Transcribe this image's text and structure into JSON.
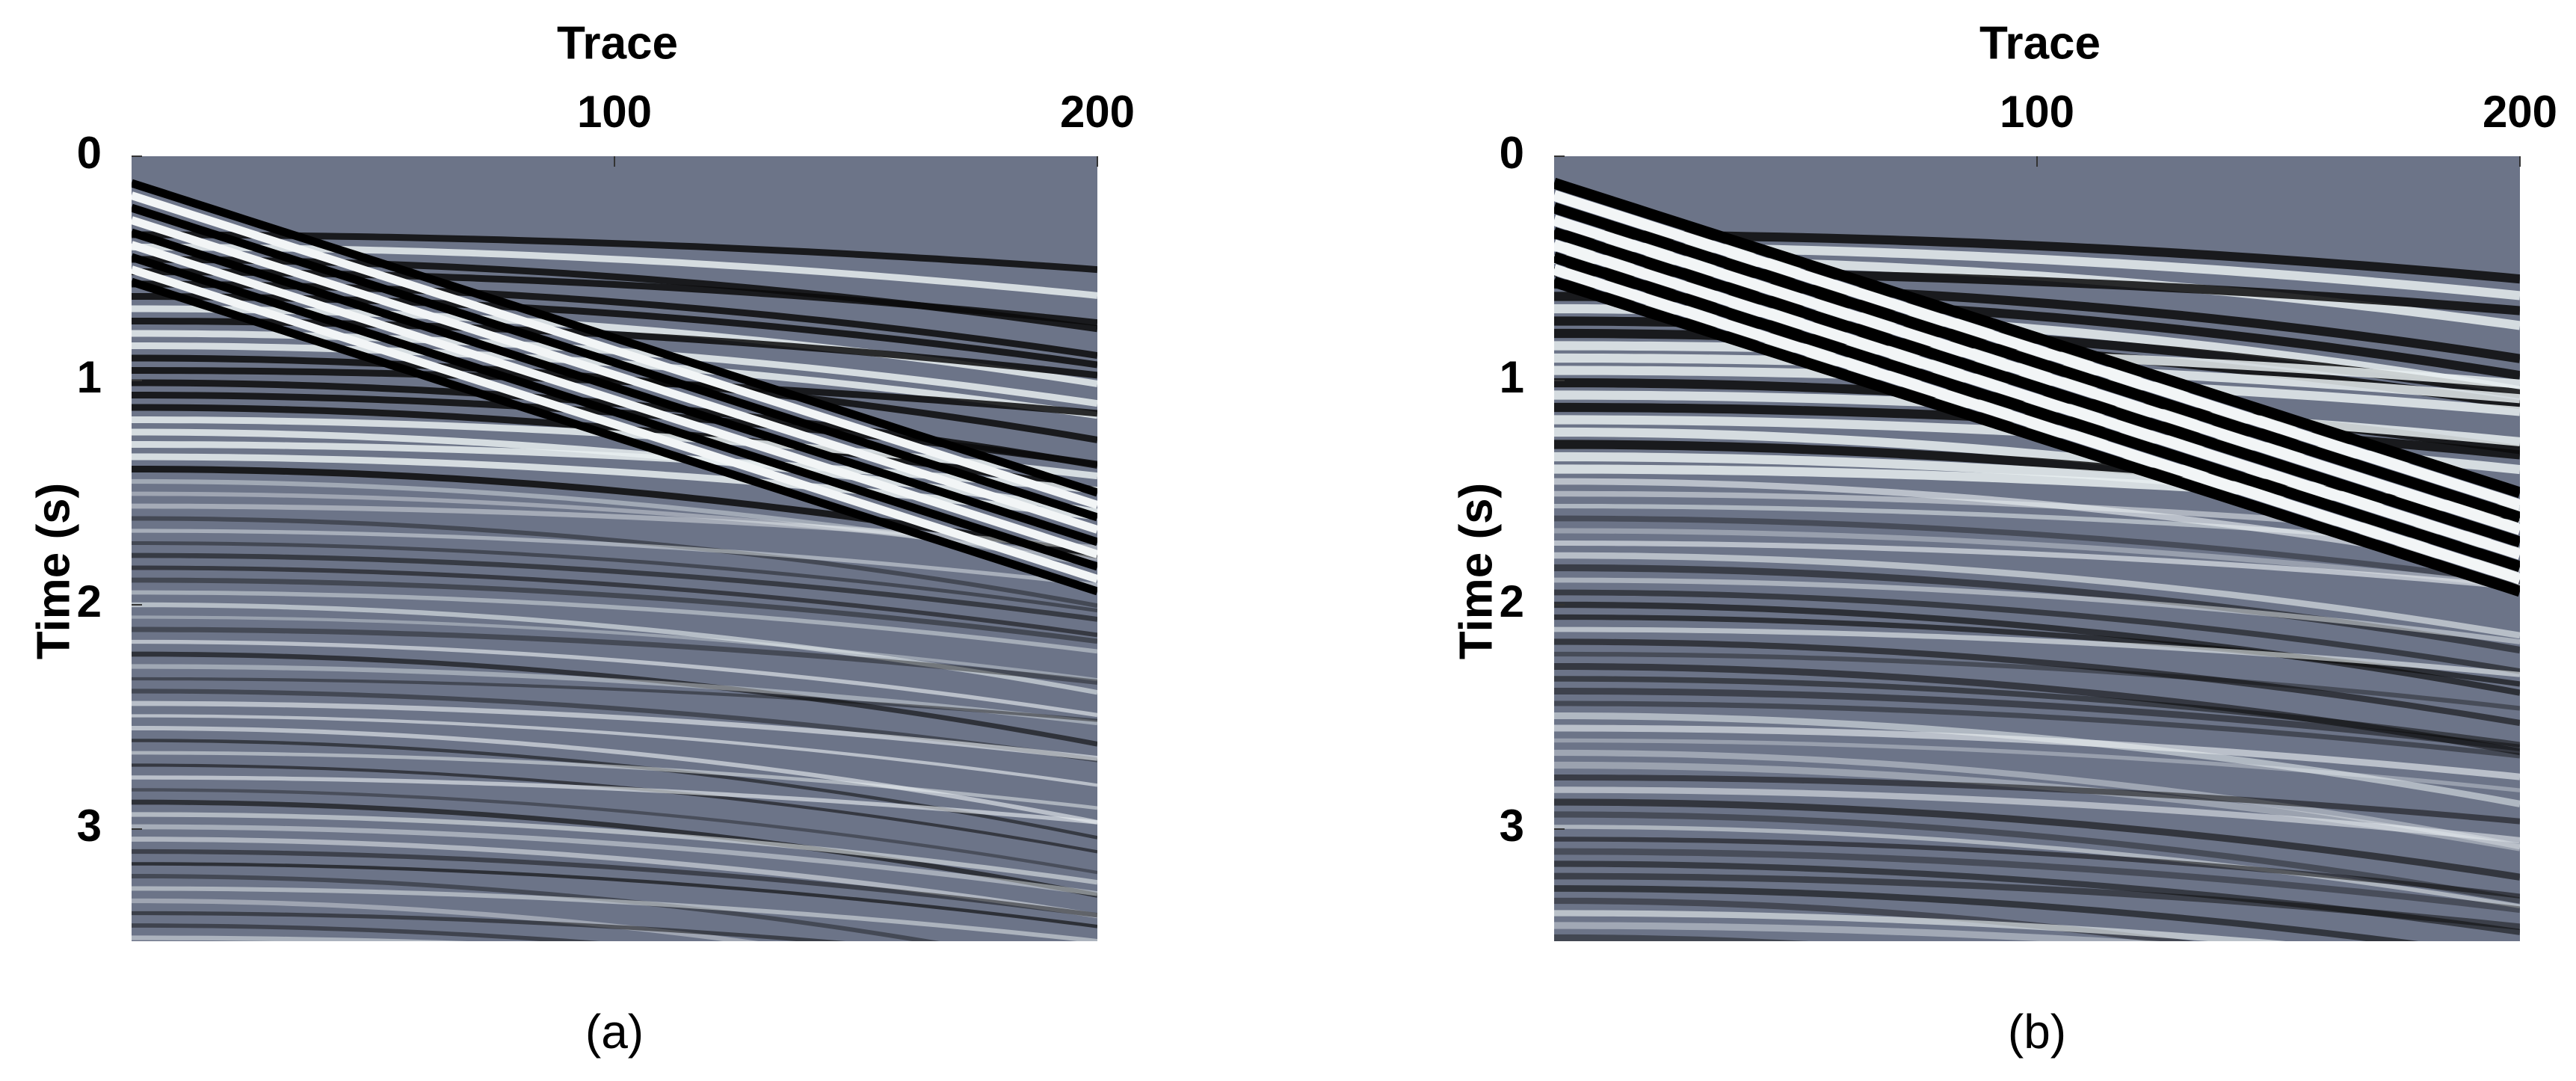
{
  "chart_data": [
    {
      "type": "seismic",
      "x_label": "Trace",
      "y_label": "Time (s)",
      "caption": "(a)",
      "xlim": [
        0,
        200
      ],
      "xticks": [
        100,
        200
      ],
      "ylim": [
        0,
        3.5
      ],
      "yticks": [
        0,
        1,
        2,
        3
      ]
    },
    {
      "type": "seismic",
      "x_label": "Trace",
      "y_label": "Time (s)",
      "caption": "(b)",
      "xlim": [
        0,
        200
      ],
      "xticks": [
        100,
        200
      ],
      "ylim": [
        0,
        3.5
      ],
      "yticks": [
        0,
        1,
        2,
        3
      ]
    }
  ]
}
